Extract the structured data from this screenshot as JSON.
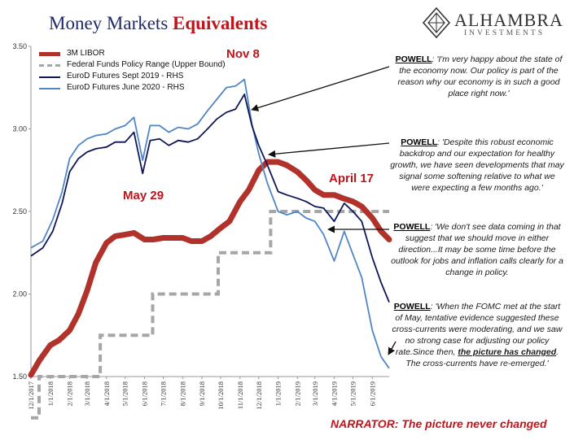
{
  "header": {
    "title_plain": "Money Markets ",
    "title_emph": "Equivalents",
    "logo_name": "ALHAMBRA",
    "logo_sub": "INVESTMENTS"
  },
  "quotes": [
    {
      "speaker": "POWELL",
      "text": ": 'I'm very happy about the state of the economy now. Our policy is part of the reason why our economy is in such a good place right now.'"
    },
    {
      "speaker": "POWELL",
      "text": ": 'Despite this robust economic backdrop and our expectation for healthy growth, we have seen developments that may signal some softening relative to what we were expecting a few months ago.'"
    },
    {
      "speaker": "POWELL",
      "text": ": 'We don't see data coming in that suggest that we should move in either direction...It may be some time before the outlook for jobs and inflation calls clearly for a change in policy."
    },
    {
      "speaker": "POWELL",
      "text": ": 'When the FOMC met at the start of May, tentative evidence suggested these cross-currents were moderating, and we saw no strong case for adjusting our policy rate.Since then, ",
      "highlight": "the picture has changed",
      "text_after": ". The cross-currents have re-emerged.'"
    }
  ],
  "narrator": "NARRATOR: The picture never changed",
  "annotations": [
    {
      "text": "Nov 8"
    },
    {
      "text": "May 29"
    },
    {
      "text": "April 17"
    }
  ],
  "colors": {
    "libor": "#b0322b",
    "fed": "#a6a6a6",
    "sept2019": "#0e1657",
    "june2020": "#4f86c6",
    "accent_red": "#c0141b",
    "title_blue": "#1f2a6b"
  },
  "chart_data": {
    "type": "line",
    "ylim": [
      1.5,
      3.5
    ],
    "yticks": [
      "1.50",
      "2.00",
      "2.50",
      "3.00",
      "3.50"
    ],
    "xticks": [
      "12/1/2017",
      "1/1/2018",
      "2/1/2018",
      "3/1/2018",
      "4/1/2018",
      "5/1/2018",
      "6/1/2018",
      "7/1/2018",
      "8/1/2018",
      "9/1/2018",
      "10/1/2018",
      "11/1/2018",
      "12/1/2018",
      "1/1/2019",
      "2/1/2019",
      "3/1/2019",
      "4/1/2019",
      "5/1/2019",
      "6/1/2019"
    ],
    "xrange": [
      "2017-12-01",
      "2019-06-28"
    ],
    "legend_position": "top-left",
    "grid": false,
    "series": [
      {
        "name": "3M LIBOR",
        "key": "libor",
        "style": "thick",
        "points": [
          [
            "2017-12-01",
            1.51
          ],
          [
            "2017-12-15",
            1.6
          ],
          [
            "2018-01-01",
            1.69
          ],
          [
            "2018-01-15",
            1.72
          ],
          [
            "2018-02-01",
            1.78
          ],
          [
            "2018-02-15",
            1.88
          ],
          [
            "2018-03-01",
            2.02
          ],
          [
            "2018-03-15",
            2.19
          ],
          [
            "2018-04-01",
            2.31
          ],
          [
            "2018-04-15",
            2.35
          ],
          [
            "2018-05-01",
            2.36
          ],
          [
            "2018-05-15",
            2.37
          ],
          [
            "2018-06-01",
            2.33
          ],
          [
            "2018-06-15",
            2.33
          ],
          [
            "2018-07-01",
            2.34
          ],
          [
            "2018-07-15",
            2.34
          ],
          [
            "2018-08-01",
            2.34
          ],
          [
            "2018-08-15",
            2.32
          ],
          [
            "2018-09-01",
            2.32
          ],
          [
            "2018-09-15",
            2.35
          ],
          [
            "2018-10-01",
            2.4
          ],
          [
            "2018-10-15",
            2.44
          ],
          [
            "2018-11-01",
            2.56
          ],
          [
            "2018-11-15",
            2.63
          ],
          [
            "2018-12-01",
            2.75
          ],
          [
            "2018-12-15",
            2.8
          ],
          [
            "2019-01-01",
            2.8
          ],
          [
            "2019-01-15",
            2.78
          ],
          [
            "2019-02-01",
            2.74
          ],
          [
            "2019-02-15",
            2.69
          ],
          [
            "2019-03-01",
            2.63
          ],
          [
            "2019-03-15",
            2.6
          ],
          [
            "2019-04-01",
            2.6
          ],
          [
            "2019-04-15",
            2.58
          ],
          [
            "2019-05-01",
            2.56
          ],
          [
            "2019-05-15",
            2.53
          ],
          [
            "2019-06-01",
            2.46
          ],
          [
            "2019-06-15",
            2.38
          ],
          [
            "2019-06-28",
            2.33
          ]
        ]
      },
      {
        "name": "Federal Funds Policy Range (Upper Bound)",
        "key": "fed",
        "style": "dashed-step",
        "points": [
          [
            "2017-12-01",
            1.25
          ],
          [
            "2017-12-14",
            1.5
          ],
          [
            "2018-03-22",
            1.75
          ],
          [
            "2018-06-14",
            2.0
          ],
          [
            "2018-09-27",
            2.25
          ],
          [
            "2018-12-20",
            2.5
          ],
          [
            "2019-06-28",
            2.5
          ]
        ]
      },
      {
        "name": "EuroD Futures Sept 2019 - RHS",
        "key": "sept2019",
        "style": "line",
        "points": [
          [
            "2017-12-01",
            2.23
          ],
          [
            "2017-12-20",
            2.28
          ],
          [
            "2018-01-05",
            2.38
          ],
          [
            "2018-01-20",
            2.55
          ],
          [
            "2018-02-01",
            2.74
          ],
          [
            "2018-02-15",
            2.82
          ],
          [
            "2018-03-01",
            2.86
          ],
          [
            "2018-03-15",
            2.88
          ],
          [
            "2018-04-01",
            2.89
          ],
          [
            "2018-04-15",
            2.92
          ],
          [
            "2018-05-01",
            2.92
          ],
          [
            "2018-05-15",
            2.98
          ],
          [
            "2018-05-29",
            2.73
          ],
          [
            "2018-06-10",
            2.93
          ],
          [
            "2018-06-25",
            2.94
          ],
          [
            "2018-07-10",
            2.9
          ],
          [
            "2018-07-25",
            2.93
          ],
          [
            "2018-08-10",
            2.92
          ],
          [
            "2018-08-25",
            2.94
          ],
          [
            "2018-09-10",
            3.0
          ],
          [
            "2018-09-25",
            3.06
          ],
          [
            "2018-10-10",
            3.1
          ],
          [
            "2018-10-25",
            3.12
          ],
          [
            "2018-11-08",
            3.21
          ],
          [
            "2018-11-20",
            3.02
          ],
          [
            "2018-12-01",
            2.9
          ],
          [
            "2018-12-15",
            2.78
          ],
          [
            "2019-01-01",
            2.62
          ],
          [
            "2019-01-15",
            2.6
          ],
          [
            "2019-02-01",
            2.58
          ],
          [
            "2019-02-15",
            2.56
          ],
          [
            "2019-03-01",
            2.53
          ],
          [
            "2019-03-15",
            2.52
          ],
          [
            "2019-04-01",
            2.44
          ],
          [
            "2019-04-17",
            2.55
          ],
          [
            "2019-05-01",
            2.5
          ],
          [
            "2019-05-15",
            2.44
          ],
          [
            "2019-06-01",
            2.22
          ],
          [
            "2019-06-15",
            2.07
          ],
          [
            "2019-06-28",
            1.95
          ]
        ]
      },
      {
        "name": "EuroD Futures June 2020 - RHS",
        "key": "june2020",
        "style": "line",
        "points": [
          [
            "2017-12-01",
            2.28
          ],
          [
            "2017-12-20",
            2.32
          ],
          [
            "2018-01-05",
            2.45
          ],
          [
            "2018-01-20",
            2.62
          ],
          [
            "2018-02-01",
            2.82
          ],
          [
            "2018-02-15",
            2.9
          ],
          [
            "2018-03-01",
            2.94
          ],
          [
            "2018-03-15",
            2.96
          ],
          [
            "2018-04-01",
            2.97
          ],
          [
            "2018-04-15",
            3.0
          ],
          [
            "2018-05-01",
            3.02
          ],
          [
            "2018-05-15",
            3.07
          ],
          [
            "2018-05-29",
            2.81
          ],
          [
            "2018-06-10",
            3.02
          ],
          [
            "2018-06-25",
            3.02
          ],
          [
            "2018-07-10",
            2.98
          ],
          [
            "2018-07-25",
            3.01
          ],
          [
            "2018-08-10",
            3.0
          ],
          [
            "2018-08-25",
            3.03
          ],
          [
            "2018-09-10",
            3.11
          ],
          [
            "2018-09-25",
            3.18
          ],
          [
            "2018-10-10",
            3.25
          ],
          [
            "2018-10-25",
            3.26
          ],
          [
            "2018-11-08",
            3.3
          ],
          [
            "2018-11-20",
            3.03
          ],
          [
            "2018-12-01",
            2.85
          ],
          [
            "2018-12-15",
            2.67
          ],
          [
            "2019-01-01",
            2.5
          ],
          [
            "2019-01-15",
            2.48
          ],
          [
            "2019-02-01",
            2.5
          ],
          [
            "2019-02-15",
            2.46
          ],
          [
            "2019-03-01",
            2.44
          ],
          [
            "2019-03-15",
            2.36
          ],
          [
            "2019-04-01",
            2.2
          ],
          [
            "2019-04-17",
            2.38
          ],
          [
            "2019-05-01",
            2.24
          ],
          [
            "2019-05-15",
            2.1
          ],
          [
            "2019-06-01",
            1.78
          ],
          [
            "2019-06-15",
            1.62
          ],
          [
            "2019-06-28",
            1.55
          ]
        ]
      }
    ]
  }
}
